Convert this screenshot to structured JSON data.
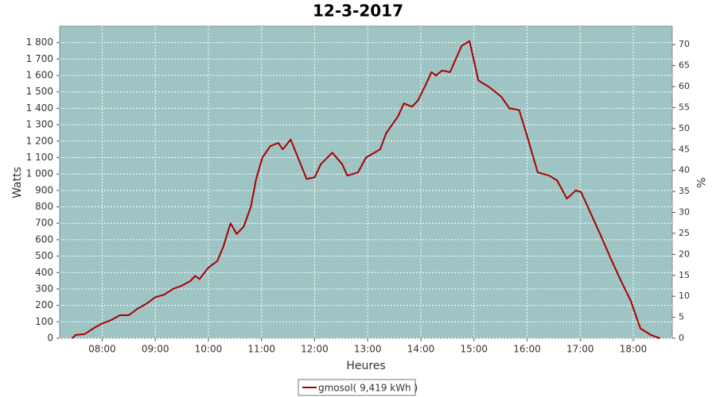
{
  "chart_data": {
    "type": "line",
    "title": "12-3-2017",
    "x_label": "Heures",
    "y_label": "Watts",
    "y2_label": "%",
    "x": [
      "07:26",
      "07:30",
      "07:40",
      "07:50",
      "08:00",
      "08:10",
      "08:20",
      "08:30",
      "08:40",
      "08:50",
      "09:00",
      "09:10",
      "09:20",
      "09:30",
      "09:40",
      "09:45",
      "09:50",
      "10:00",
      "10:10",
      "10:17",
      "10:25",
      "10:32",
      "10:40",
      "10:48",
      "10:54",
      "11:01",
      "11:10",
      "11:19",
      "11:24",
      "11:33",
      "11:42",
      "11:51",
      "12:00",
      "12:07",
      "12:20",
      "12:31",
      "12:37",
      "12:49",
      "12:58",
      "13:14",
      "13:21",
      "13:34",
      "13:41",
      "13:50",
      "13:57",
      "14:06",
      "14:12",
      "14:17",
      "14:24",
      "14:33",
      "14:46",
      "14:55",
      "15:05",
      "15:17",
      "15:31",
      "15:40",
      "15:51",
      "15:59",
      "16:12",
      "16:25",
      "16:34",
      "16:45",
      "16:55",
      "17:01",
      "17:12",
      "17:22",
      "17:35",
      "17:46",
      "17:57",
      "18:08",
      "18:20",
      "18:30"
    ],
    "series": [
      {
        "name": "gmosol( 9,419 kWh )",
        "color": "#aa0000",
        "values": [
          0,
          20,
          25,
          60,
          90,
          110,
          140,
          140,
          180,
          210,
          250,
          265,
          300,
          320,
          350,
          380,
          360,
          430,
          470,
          560,
          700,
          635,
          680,
          800,
          970,
          1100,
          1170,
          1190,
          1150,
          1210,
          1090,
          970,
          980,
          1060,
          1130,
          1060,
          990,
          1010,
          1100,
          1150,
          1250,
          1350,
          1430,
          1410,
          1450,
          1550,
          1620,
          1600,
          1630,
          1620,
          1780,
          1810,
          1570,
          1530,
          1470,
          1400,
          1390,
          1250,
          1010,
          990,
          960,
          850,
          900,
          890,
          760,
          640,
          480,
          350,
          230,
          60,
          20,
          0
        ]
      }
    ],
    "xlim": [
      "07:12",
      "18:44"
    ],
    "xticks": [
      "08:00",
      "09:00",
      "10:00",
      "11:00",
      "12:00",
      "13:00",
      "14:00",
      "15:00",
      "16:00",
      "17:00",
      "18:00"
    ],
    "ylim": [
      0,
      1900
    ],
    "yticks": [
      0,
      100,
      200,
      300,
      400,
      500,
      600,
      700,
      800,
      900,
      {
        "value": 1000,
        "label": "1 000"
      },
      {
        "value": 1100,
        "label": "1 100"
      },
      {
        "value": 1200,
        "label": "1 200"
      },
      {
        "value": 1300,
        "label": "1 300"
      },
      {
        "value": 1400,
        "label": "1 400"
      },
      {
        "value": 1500,
        "label": "1 500"
      },
      {
        "value": 1600,
        "label": "1 600"
      },
      {
        "value": 1700,
        "label": "1 700"
      },
      {
        "value": 1800,
        "label": "1 800"
      }
    ],
    "y2lim": [
      0,
      74.4
    ],
    "y2ticks": [
      0,
      5,
      10,
      15,
      20,
      25,
      30,
      35,
      40,
      45,
      50,
      55,
      60,
      65,
      70
    ],
    "grid": true,
    "plot_background": "#9fc4c4"
  }
}
